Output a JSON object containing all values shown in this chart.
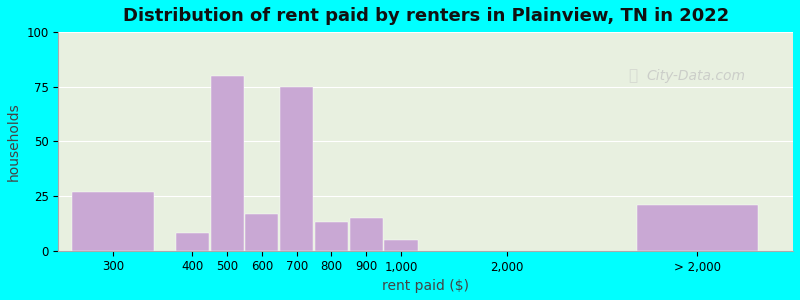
{
  "title": "Distribution of rent paid by renters in Plainview, TN in 2022",
  "xlabel": "rent paid ($)",
  "ylabel": "households",
  "background_color": "#00FFFF",
  "bar_color": "#c9a8d4",
  "ylim": [
    0,
    100
  ],
  "yticks": [
    0,
    25,
    50,
    75,
    100
  ],
  "categories": [
    "300",
    "400",
    "500",
    "600",
    "700",
    "800",
    "900",
    "1,000",
    "2,000",
    "> 2,000"
  ],
  "values": [
    27,
    8,
    80,
    17,
    75,
    13,
    15,
    5,
    0,
    21
  ],
  "title_fontsize": 13,
  "axis_label_fontsize": 10,
  "tick_fontsize": 8.5,
  "watermark_text": "City-Data.com",
  "watermark_color": "#c0c0c0",
  "grid_color": "#ffffff",
  "plot_bg_color": "#e8f0e0"
}
